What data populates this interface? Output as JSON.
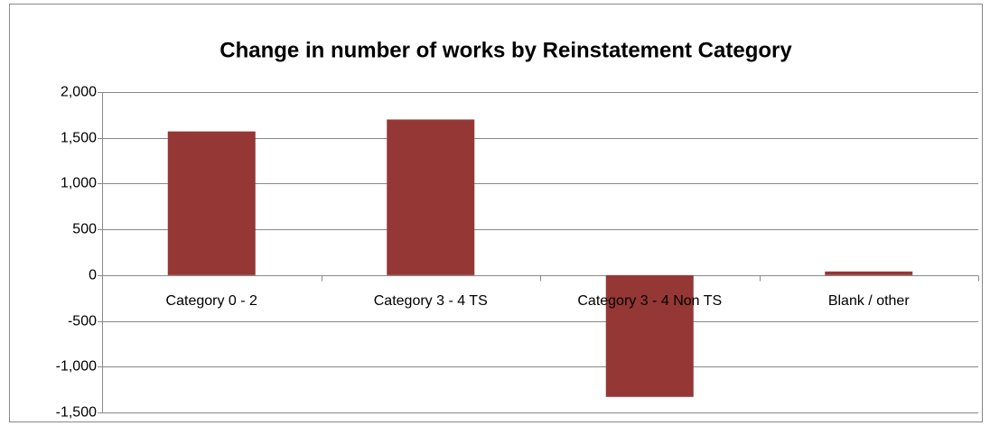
{
  "chart_data": {
    "type": "bar",
    "title": "Change in number of works by Reinstatement Category",
    "categories": [
      "Category 0 - 2",
      "Category 3 - 4 TS",
      "Category 3 - 4 Non TS",
      "Blank / other"
    ],
    "values": [
      1570,
      1700,
      -1330,
      40
    ],
    "color": "#953735",
    "ylim": [
      -1500,
      2000
    ],
    "yticks": [
      {
        "value": -1500,
        "label": "-1,500"
      },
      {
        "value": -1000,
        "label": "-1,000"
      },
      -500,
      0,
      500,
      {
        "value": 1000,
        "label": "1,000"
      },
      {
        "value": 1500,
        "label": "1,500"
      },
      {
        "value": 2000,
        "label": "2,000"
      }
    ],
    "grid": true
  }
}
